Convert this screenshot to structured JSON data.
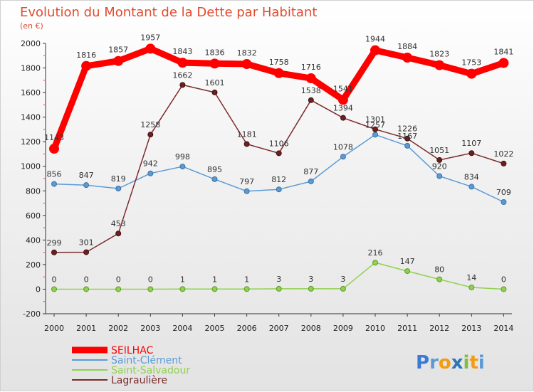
{
  "chart_data": {
    "type": "line",
    "title": "Evolution du Montant de la Dette par Habitant",
    "subtitle": "(en €)",
    "xlabel": "",
    "ylabel": "",
    "x": [
      "2000",
      "2001",
      "2002",
      "2003",
      "2004",
      "2005",
      "2006",
      "2007",
      "2008",
      "2009",
      "2010",
      "2011",
      "2012",
      "2013",
      "2014"
    ],
    "ylim": [
      -200,
      2000
    ],
    "yticks": [
      -200,
      0,
      200,
      400,
      600,
      800,
      1000,
      1200,
      1400,
      1600,
      1800,
      2000
    ],
    "grid": false,
    "legend_position": "bottom-left",
    "series": [
      {
        "name": "SEILHAC",
        "color": "#ff0000",
        "values": [
          1143,
          1816,
          1857,
          1957,
          1843,
          1836,
          1832,
          1758,
          1716,
          1541,
          1944,
          1884,
          1823,
          1753,
          1841
        ]
      },
      {
        "name": "Saint-Clément",
        "color": "#5b9bd5",
        "values": [
          856,
          847,
          819,
          942,
          998,
          895,
          797,
          812,
          877,
          1078,
          1257,
          1167,
          920,
          834,
          709
        ]
      },
      {
        "name": "Saint-Salvadour",
        "color": "#92d050",
        "values": [
          0,
          0,
          0,
          0,
          1,
          1,
          1,
          3,
          3,
          3,
          216,
          147,
          80,
          14,
          0
        ]
      },
      {
        "name": "Lagraulière",
        "color": "#7b2c2c",
        "values": [
          299,
          301,
          453,
          1258,
          1662,
          1601,
          1181,
          1106,
          1538,
          1394,
          1301,
          1226,
          1051,
          1107,
          1022
        ]
      }
    ]
  },
  "branding": {
    "logo_text": "Proxiti",
    "logo_letters": [
      "P",
      "r",
      "o",
      "x",
      "i",
      "t",
      "i"
    ],
    "logo_colors": [
      "#3a7bd5",
      "#5b9bd5",
      "#f39c12",
      "#2e75b6",
      "#7fbf3f",
      "#f39c12",
      "#5b9bd5"
    ]
  }
}
